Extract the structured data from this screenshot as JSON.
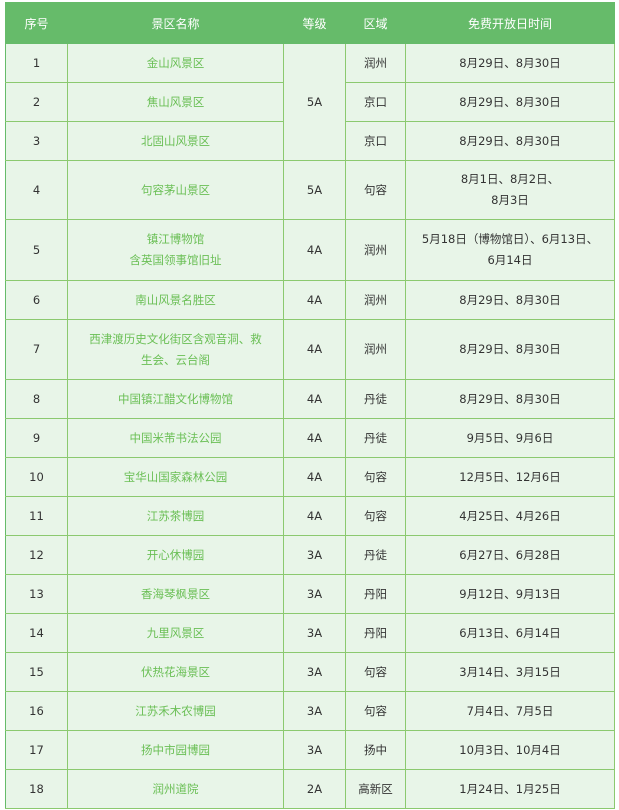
{
  "colors": {
    "header": "#66bb6a",
    "cell": "#e8f5e8",
    "border": "#8bc96f",
    "name_text": "#6abf55"
  },
  "headers": [
    "序号",
    "景区名称",
    "等级",
    "区域",
    "免费开放日时间"
  ],
  "rows": [
    {
      "no": "1",
      "name": "金山风景区",
      "grade": "5A",
      "grade_span": 3,
      "area": "润州",
      "dates": "8月29日、8月30日"
    },
    {
      "no": "2",
      "name": "焦山风景区",
      "area": "京口",
      "dates": "8月29日、8月30日"
    },
    {
      "no": "3",
      "name": "北固山风景区",
      "area": "京口",
      "dates": "8月29日、8月30日"
    },
    {
      "no": "4",
      "name": "句容茅山景区",
      "grade": "5A",
      "area": "句容",
      "dates": "8月1日、8月2日、\n8月3日"
    },
    {
      "no": "5",
      "name": "镇江博物馆\n含英国领事馆旧址",
      "grade": "4A",
      "area": "润州",
      "dates": "5月18日（博物馆日）、6月13日、\n6月14日"
    },
    {
      "no": "6",
      "name": "南山风景名胜区",
      "grade": "4A",
      "area": "润州",
      "dates": "8月29日、8月30日"
    },
    {
      "no": "7",
      "name": "西津渡历史文化街区含观音洞、救\n生会、云台阁",
      "grade": "4A",
      "area": "润州",
      "dates": "8月29日、8月30日"
    },
    {
      "no": "8",
      "name": "中国镇江醋文化博物馆",
      "grade": "4A",
      "area": "丹徒",
      "dates": "8月29日、8月30日"
    },
    {
      "no": "9",
      "name": "中国米芾书法公园",
      "grade": "4A",
      "area": "丹徒",
      "dates": "9月5日、9月6日"
    },
    {
      "no": "10",
      "name": "宝华山国家森林公园",
      "grade": "4A",
      "area": "句容",
      "dates": "12月5日、12月6日"
    },
    {
      "no": "11",
      "name": "江苏茶博园",
      "grade": "4A",
      "area": "句容",
      "dates": "4月25日、4月26日"
    },
    {
      "no": "12",
      "name": "开心休博园",
      "grade": "3A",
      "area": "丹徒",
      "dates": "6月27日、6月28日"
    },
    {
      "no": "13",
      "name": "香海琴枫景区",
      "grade": "3A",
      "area": "丹阳",
      "dates": "9月12日、9月13日"
    },
    {
      "no": "14",
      "name": "九里风景区",
      "grade": "3A",
      "area": "丹阳",
      "dates": "6月13日、6月14日"
    },
    {
      "no": "15",
      "name": "伏热花海景区",
      "grade": "3A",
      "area": "句容",
      "dates": "3月14日、3月15日"
    },
    {
      "no": "16",
      "name": "江苏禾木农博园",
      "grade": "3A",
      "area": "句容",
      "dates": "7月4日、7月5日"
    },
    {
      "no": "17",
      "name": "扬中市园博园",
      "grade": "3A",
      "area": "扬中",
      "dates": "10月3日、10月4日"
    },
    {
      "no": "18",
      "name": "润州道院",
      "grade": "2A",
      "area": "高新区",
      "dates": "1月24日、1月25日"
    }
  ]
}
